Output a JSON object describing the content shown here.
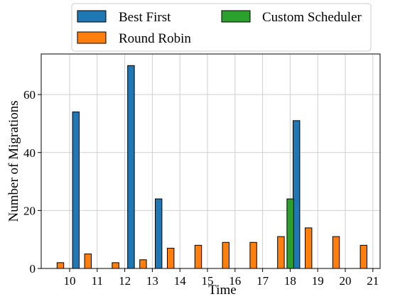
{
  "chart_data": {
    "type": "bar",
    "title": "",
    "xlabel": "Time",
    "ylabel": "Number of Migrations",
    "categories": [
      "10",
      "11",
      "12",
      "13",
      "14",
      "15",
      "16",
      "17",
      "18",
      "19",
      "20",
      "21"
    ],
    "ylim": [
      0,
      74
    ],
    "yticks": [
      0,
      20,
      40,
      60
    ],
    "grid": true,
    "legend_position": "top-center",
    "series": [
      {
        "name": "Best First",
        "color": "#1f77b4",
        "values": [
          54,
          0,
          70,
          24,
          0,
          0,
          0,
          0,
          51,
          0,
          0,
          0
        ]
      },
      {
        "name": "Round Robin",
        "color": "#ff7f0e",
        "values": [
          2,
          5,
          2,
          3,
          7,
          8,
          9,
          9,
          11,
          14,
          11,
          8
        ]
      },
      {
        "name": "Custom Scheduler",
        "color": "#2ca02c",
        "values": [
          0,
          0,
          0,
          0,
          0,
          0,
          0,
          0,
          24,
          0,
          0,
          0
        ]
      }
    ]
  }
}
